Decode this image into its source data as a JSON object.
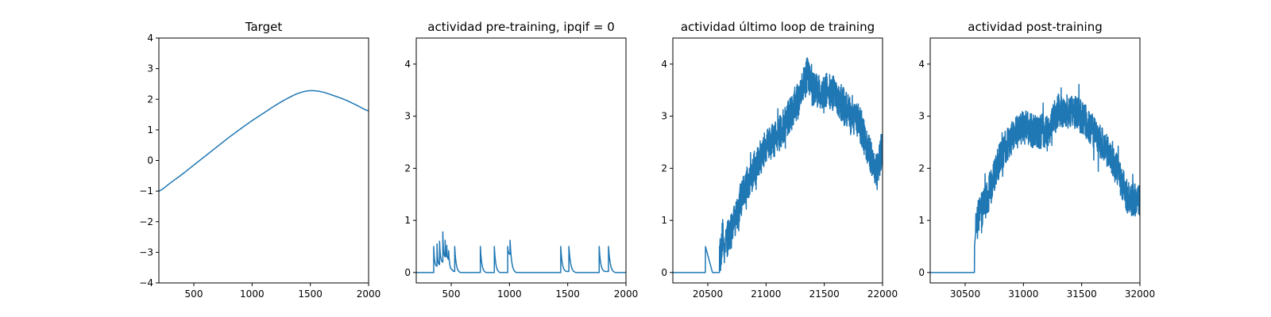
{
  "chart_data": [
    {
      "type": "line",
      "title": "Target",
      "xlabel": "",
      "ylabel": "",
      "xlim": [
        200,
        2000
      ],
      "ylim": [
        -4,
        4
      ],
      "xticks": [
        500,
        1000,
        1500,
        2000
      ],
      "yticks": [
        -4,
        -3,
        -2,
        -1,
        0,
        1,
        2,
        3,
        4
      ],
      "grid": false,
      "color": "#1f77b4",
      "series": [
        {
          "x": [
            200,
            300,
            400,
            500,
            600,
            700,
            800,
            900,
            1000,
            1100,
            1200,
            1300,
            1400,
            1500,
            1600,
            1700,
            1800,
            1900,
            2000
          ],
          "y": [
            -1.0,
            -0.73,
            -0.45,
            -0.15,
            0.15,
            0.45,
            0.75,
            1.03,
            1.3,
            1.55,
            1.8,
            2.02,
            2.2,
            2.28,
            2.24,
            2.12,
            1.98,
            1.8,
            1.62
          ]
        }
      ]
    },
    {
      "type": "line",
      "title": "actividad pre-training, ipqif = 0",
      "xlabel": "",
      "ylabel": "",
      "xlim": [
        200,
        2000
      ],
      "ylim": [
        -0.2,
        4.5
      ],
      "xticks": [
        500,
        1000,
        1500,
        2000
      ],
      "yticks": [
        0,
        1,
        2,
        3,
        4
      ],
      "grid": false,
      "color": "#1f77b4",
      "series": [
        {
          "x": [
            200,
            350,
            350,
            378,
            378,
            400,
            400,
            428,
            428,
            448,
            448,
            462,
            462,
            478,
            478,
            510,
            530,
            530,
            580,
            750,
            750,
            800,
            870,
            870,
            920,
            985,
            985,
            1005,
            1005,
            1060,
            1440,
            1440,
            1490,
            1510,
            1510,
            1570,
            1770,
            1770,
            1820,
            1850,
            1850,
            1910,
            2000
          ],
          "y": [
            0,
            0,
            0.5,
            0.12,
            0.55,
            0.15,
            0.6,
            0.2,
            0.78,
            0.3,
            0.62,
            0.3,
            0.52,
            0.25,
            0.42,
            0.05,
            0.02,
            0.5,
            0.0,
            0.0,
            0.5,
            0.0,
            0.0,
            0.5,
            0.0,
            0.0,
            0.5,
            0.35,
            0.62,
            0.0,
            0.0,
            0.5,
            0.02,
            0.02,
            0.5,
            0.0,
            0.0,
            0.5,
            0.02,
            0.02,
            0.5,
            0.0,
            0.0
          ]
        }
      ]
    },
    {
      "type": "line",
      "title": "actividad último loop de training",
      "xlabel": "",
      "ylabel": "",
      "xlim": [
        20200,
        22000
      ],
      "ylim": [
        -0.2,
        4.5
      ],
      "xticks": [
        20500,
        21000,
        21500,
        22000
      ],
      "yticks": [
        0,
        1,
        2,
        3,
        4
      ],
      "grid": false,
      "color": "#1f77b4",
      "series": [
        {
          "x": [
            20200,
            20480,
            20480,
            20540,
            20600,
            20600,
            20700,
            20800,
            20900,
            21000,
            21100,
            21200,
            21300,
            21350,
            21400,
            21500,
            21600,
            21700,
            21800,
            21900,
            21950,
            22000
          ],
          "y": [
            0,
            0,
            0.5,
            0.0,
            0.0,
            0.3,
            0.8,
            1.5,
            2.0,
            2.4,
            2.6,
            3.0,
            3.4,
            3.8,
            3.5,
            3.5,
            3.4,
            3.1,
            2.9,
            2.2,
            1.9,
            2.4
          ],
          "noise_amplitude": 0.35,
          "noise_from_x": 20600
        }
      ]
    },
    {
      "type": "line",
      "title": "actividad post-training",
      "xlabel": "",
      "ylabel": "",
      "xlim": [
        30200,
        32000
      ],
      "ylim": [
        -0.2,
        4.5
      ],
      "xticks": [
        30500,
        31000,
        31500,
        32000
      ],
      "yticks": [
        0,
        1,
        2,
        3,
        4
      ],
      "grid": false,
      "color": "#1f77b4",
      "series": [
        {
          "x": [
            30200,
            30580,
            30580,
            30600,
            30700,
            30800,
            30900,
            31000,
            31100,
            31200,
            31300,
            31400,
            31500,
            31600,
            31700,
            31800,
            31900,
            32000
          ],
          "y": [
            0,
            0,
            0.5,
            1.0,
            1.5,
            2.2,
            2.6,
            2.8,
            2.7,
            2.7,
            3.1,
            3.1,
            3.0,
            2.7,
            2.4,
            2.0,
            1.4,
            1.4
          ],
          "noise_amplitude": 0.33,
          "noise_from_x": 30590
        }
      ]
    }
  ]
}
